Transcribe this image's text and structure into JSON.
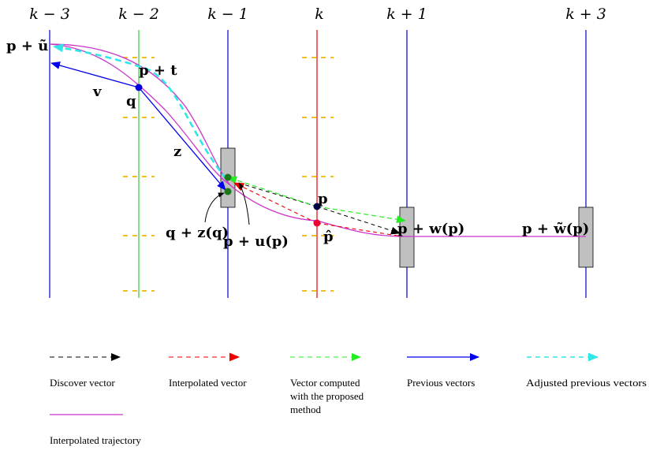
{
  "frames": [
    {
      "id": "k-3",
      "label": "k − 3",
      "color": "#0000cc"
    },
    {
      "id": "k-2",
      "label": "k − 2",
      "color": "#33cc33"
    },
    {
      "id": "k-1",
      "label": "k − 1",
      "color": "#0000cc"
    },
    {
      "id": "k",
      "label": "k",
      "color": "#ee0000"
    },
    {
      "id": "k+1",
      "label": "k + 1",
      "color": "#0000cc"
    },
    {
      "id": "k+3",
      "label": "k + 3",
      "color": "#0000cc"
    }
  ],
  "points": {
    "p_plus_u_tilde": "p + ũ",
    "p_plus_t": "p + t",
    "q": "q",
    "v": "v",
    "z": "z",
    "q_plus_z_q": "q + z(q)",
    "p_plus_u_p": "p + u(p)",
    "p": "p",
    "p_hat": "p̂",
    "p_plus_w_p": "p + w(p)",
    "p_plus_w_tilde_p": "p + w̃(p)"
  },
  "legend": [
    {
      "id": "discover",
      "text": [
        "Discover vector"
      ],
      "color": "#000000",
      "style": "dashed"
    },
    {
      "id": "interpolated",
      "text": [
        "Interpolated vector"
      ],
      "color": "#ee0000",
      "style": "dashed"
    },
    {
      "id": "proposed",
      "text": [
        "Vector computed",
        "with the proposed",
        "method"
      ],
      "color": "#22ee22",
      "style": "dashed"
    },
    {
      "id": "previous",
      "text": [
        "Previous vectors"
      ],
      "color": "#0000ee",
      "style": "solid"
    },
    {
      "id": "adjusted",
      "text": [
        "Adjusted previous vectors"
      ],
      "color": "#33e6e6",
      "style": "dashed"
    },
    {
      "id": "trajectory",
      "text": [
        "Interpolated trajectory"
      ],
      "color": "#cc33cc",
      "style": "line"
    }
  ],
  "colors": {
    "search_window_fill": "#c0c0c0",
    "grid_dash": "#f0c020",
    "trajectory": "#cc33cc"
  }
}
